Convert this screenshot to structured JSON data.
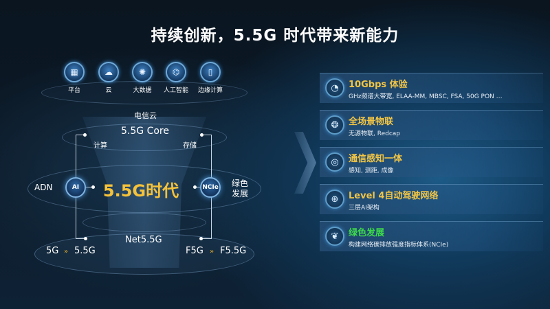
{
  "title": "持续创新，5.5G 时代带来新能力",
  "top_icons": [
    {
      "icon": "platform-icon",
      "label": "平台"
    },
    {
      "icon": "cloud-icon",
      "label": "云"
    },
    {
      "icon": "big-data-icon",
      "label": "大数据"
    },
    {
      "icon": "ai-chip-icon",
      "label": "人工智能"
    },
    {
      "icon": "edge-computing-icon",
      "label": "边缘计算"
    }
  ],
  "diagram": {
    "telecom_cloud": "电信云",
    "core": "5.5G Core",
    "compute": "计算",
    "storage": "存储",
    "center": "5.5G时代",
    "ai_badge": "AI",
    "ncie_badge": "NCIe",
    "adn": "ADN",
    "green_line1": "绿色",
    "green_line2": "发展",
    "net": "Net5.5G",
    "mobile_from": "5G",
    "mobile_to": "5.5G",
    "fixed_from": "F5G",
    "fixed_to": "F5.5G"
  },
  "features": [
    {
      "icon": "speed-gauge-icon",
      "title": "10Gbps 体验",
      "subtitle": "GHz频谱大带宽, ELAA-MM, MBSC, FSA, 50G PON …",
      "color": "#f2c544"
    },
    {
      "icon": "iot-icon",
      "title": "全场景物联",
      "subtitle": "无源物联, Redcap",
      "color": "#f2c544"
    },
    {
      "icon": "sensing-icon",
      "title": "通信感知一体",
      "subtitle": "感知, 测距, 成像",
      "color": "#f2c544"
    },
    {
      "icon": "network-globe-icon",
      "title": "Level 4自动驾驶网络",
      "subtitle": "三层AI架构",
      "color": "#f2c544"
    },
    {
      "icon": "leaf-icon",
      "title": "绿色发展",
      "subtitle": "构建网络碳排放强度指标体系(NCIe)",
      "color": "#3ddc4a"
    }
  ]
}
